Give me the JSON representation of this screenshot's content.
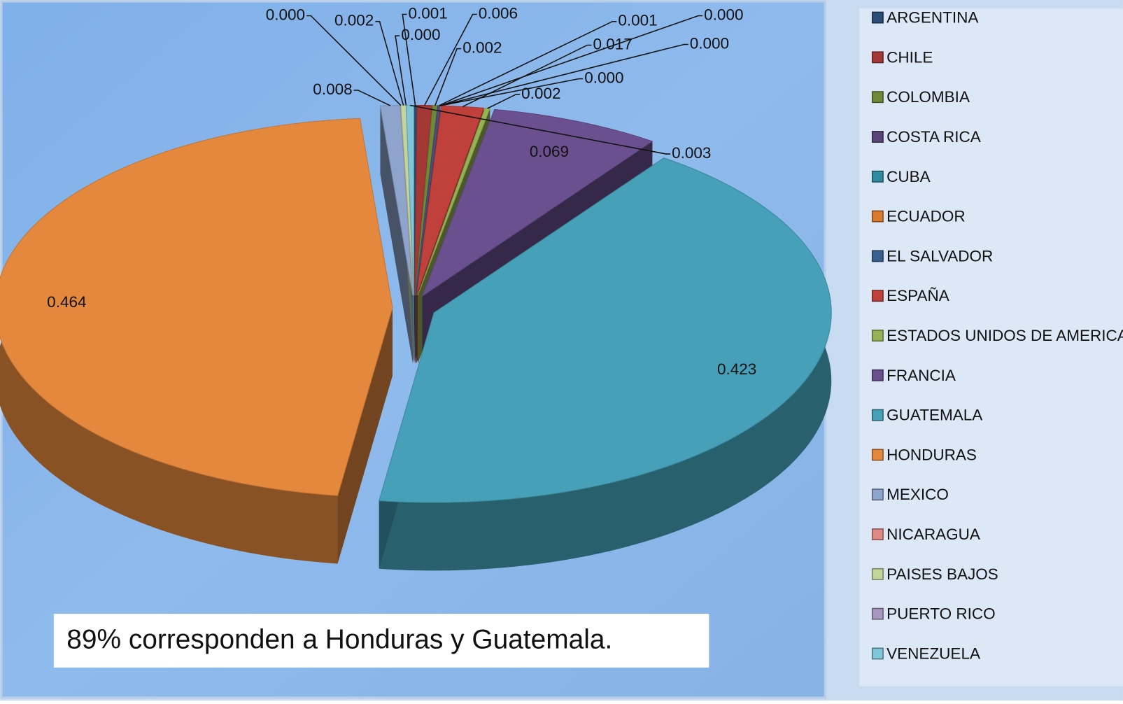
{
  "chart_data": {
    "type": "pie",
    "annotation": "89% corresponden a Honduras y Guatemala.",
    "categories": [
      "ARGENTINA",
      "CHILE",
      "COLOMBIA",
      "COSTA RICA",
      "CUBA",
      "ECUADOR",
      "EL SALVADOR",
      "ESPAÑA",
      "ESTADOS UNIDOS DE AMERICA",
      "FRANCIA",
      "GUATEMALA",
      "HONDURAS",
      "MEXICO",
      "NICARAGUA",
      "PAISES BAJOS",
      "PUERTO RICO",
      "VENEZUELA"
    ],
    "values": [
      0.001,
      0.006,
      0.002,
      0.001,
      0,
      0,
      0,
      0.017,
      0.002,
      0.069,
      0.423,
      0.464,
      0.008,
      0,
      0.002,
      0,
      0.003
    ],
    "value_labels": [
      "0.001",
      "0.006",
      "0.002",
      "0.001",
      "0.000",
      "0.000",
      "0.000",
      "0.017",
      "0.002",
      "0.069",
      "0.423",
      "0.464",
      "0.008",
      "0.000",
      "0.002",
      "0.000",
      "0.003"
    ],
    "colors": [
      "#2c4d75",
      "#a33835",
      "#6f8a37",
      "#5a4578",
      "#2f8aa2",
      "#d97a2e",
      "#3a6091",
      "#c0403c",
      "#95b254",
      "#6b5090",
      "#45a0b8",
      "#e4883e",
      "#8ea4cc",
      "#e08a86",
      "#c2d69b",
      "#a897c0",
      "#7fc6d8"
    ]
  }
}
